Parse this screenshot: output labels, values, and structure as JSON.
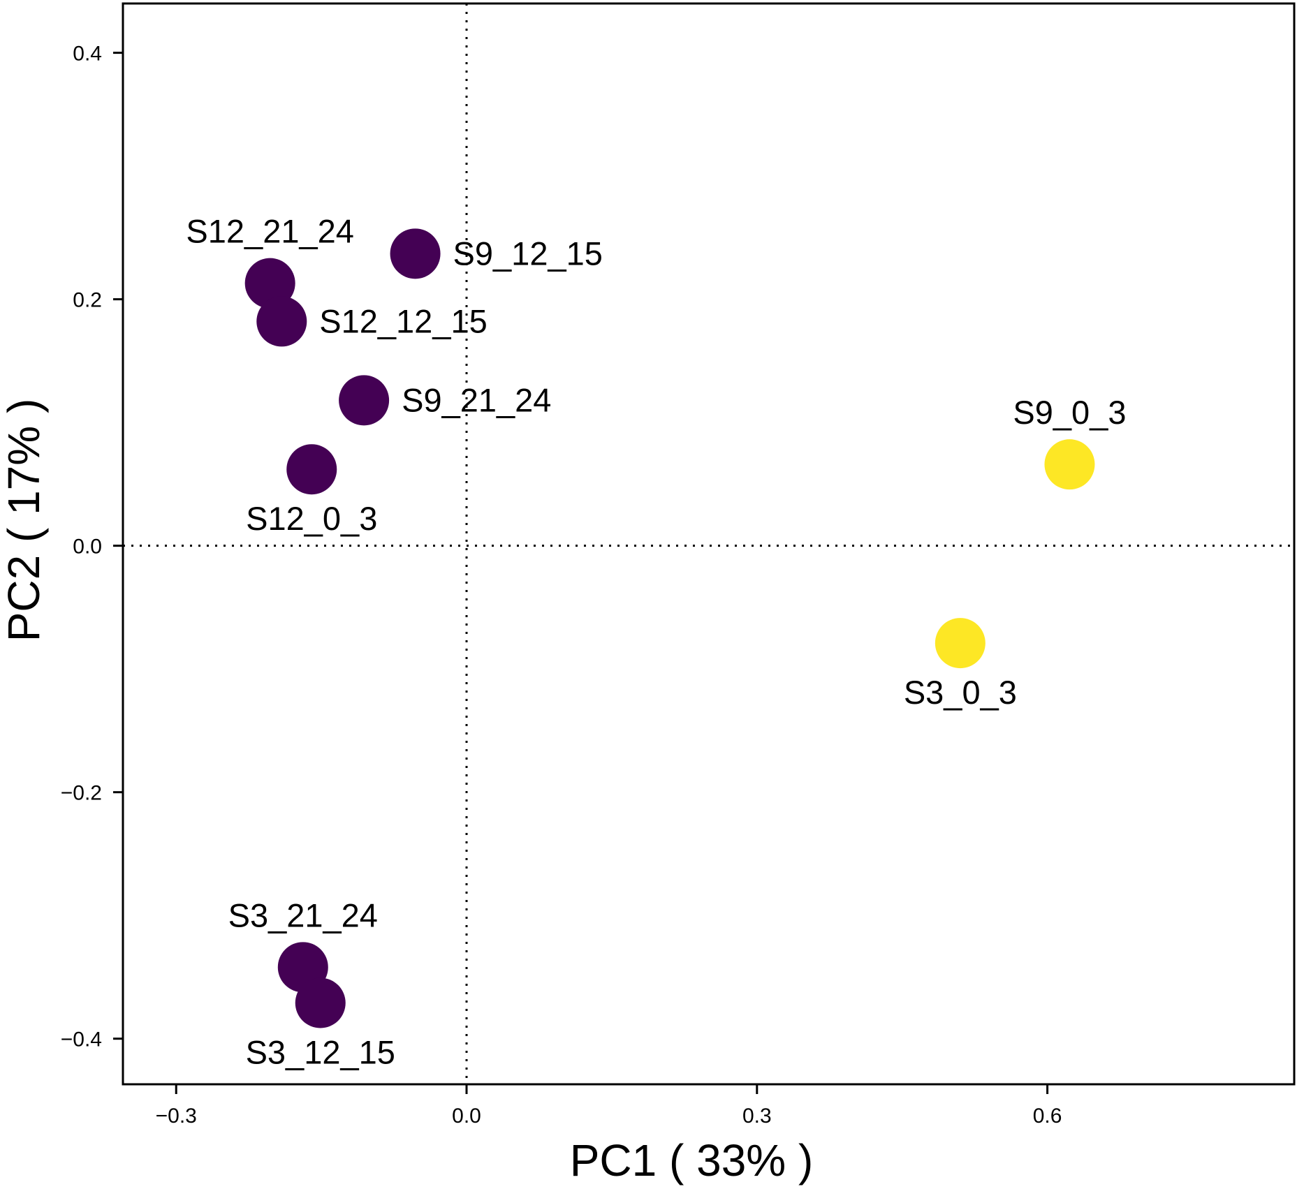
{
  "chart_data": {
    "type": "scatter",
    "xlabel": "PC1 ( 33% )",
    "ylabel": "PC2 ( 17% )",
    "xlim": [
      -0.355,
      0.855
    ],
    "ylim": [
      -0.437,
      0.44
    ],
    "xticks": [
      -0.3,
      0.0,
      0.3,
      0.6
    ],
    "yticks": [
      -0.4,
      -0.2,
      0.0,
      0.2,
      0.4
    ],
    "xtick_labels": [
      "−0.3",
      "0.0",
      "0.3",
      "0.6"
    ],
    "ytick_labels": [
      "−0.4",
      "−0.2",
      "0.0",
      "0.2",
      "0.4"
    ],
    "reference_lines": {
      "x": 0.0,
      "y": 0.0,
      "style": "dotted"
    },
    "grid": false,
    "legend": "none",
    "colors": {
      "group_a": "#440154",
      "group_b": "#FDE725"
    },
    "points": [
      {
        "label": "S9_12_15",
        "x": -0.053,
        "y": 0.237,
        "group": "group_a",
        "label_pos": "right"
      },
      {
        "label": "S12_21_24",
        "x": -0.203,
        "y": 0.213,
        "group": "group_a",
        "label_pos": "above"
      },
      {
        "label": "S12_12_15",
        "x": -0.191,
        "y": 0.182,
        "group": "group_a",
        "label_pos": "right"
      },
      {
        "label": "S9_21_24",
        "x": -0.106,
        "y": 0.118,
        "group": "group_a",
        "label_pos": "right"
      },
      {
        "label": "S12_0_3",
        "x": -0.16,
        "y": 0.062,
        "group": "group_a",
        "label_pos": "below"
      },
      {
        "label": "S9_0_3",
        "x": 0.623,
        "y": 0.066,
        "group": "group_b",
        "label_pos": "above"
      },
      {
        "label": "S3_0_3",
        "x": 0.51,
        "y": -0.079,
        "group": "group_b",
        "label_pos": "below"
      },
      {
        "label": "S3_21_24",
        "x": -0.169,
        "y": -0.342,
        "group": "group_a",
        "label_pos": "above"
      },
      {
        "label": "S3_12_15",
        "x": -0.151,
        "y": -0.371,
        "group": "group_a",
        "label_pos": "below"
      }
    ]
  }
}
